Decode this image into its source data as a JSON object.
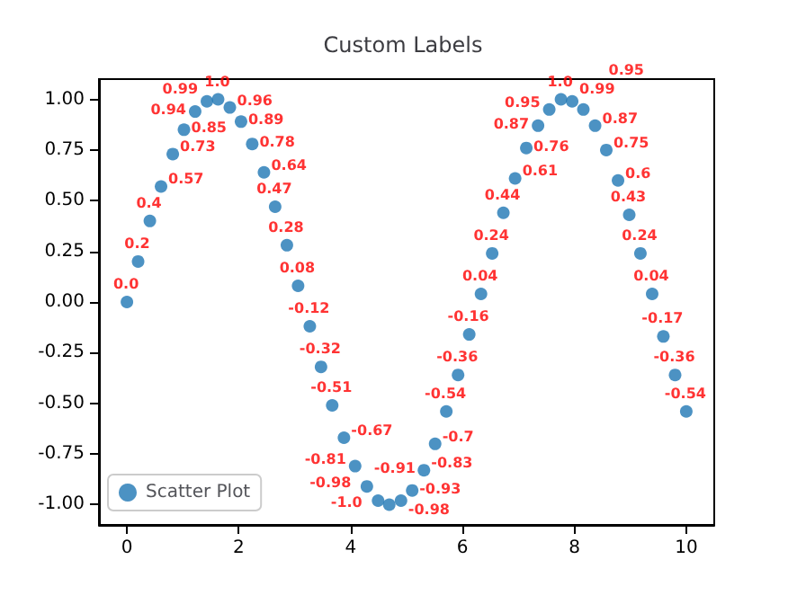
{
  "chart_data": {
    "type": "scatter",
    "title": "Custom Labels",
    "x": [
      0,
      0.2,
      0.41,
      0.61,
      0.82,
      1.02,
      1.22,
      1.43,
      1.63,
      1.84,
      2.04,
      2.24,
      2.45,
      2.65,
      2.86,
      3.06,
      3.27,
      3.47,
      3.67,
      3.88,
      4.08,
      4.29,
      4.49,
      4.69,
      4.9,
      5.1,
      5.31,
      5.51,
      5.71,
      5.92,
      6.12,
      6.33,
      6.53,
      6.73,
      6.94,
      7.14,
      7.35,
      7.55,
      7.76,
      7.96,
      8.16,
      8.37,
      8.57,
      8.78,
      8.98,
      9.18,
      9.39,
      9.59,
      9.8,
      10
    ],
    "series": [
      {
        "name": "Scatter Plot",
        "color": "#1f77b4",
        "values": [
          0.0,
          0.2,
          0.4,
          0.57,
          0.73,
          0.85,
          0.94,
          0.99,
          1.0,
          0.96,
          0.89,
          0.78,
          0.64,
          0.47,
          0.28,
          0.08,
          -0.12,
          -0.32,
          -0.51,
          -0.67,
          -0.81,
          -0.91,
          -0.98,
          -1.0,
          -0.98,
          -0.93,
          -0.83,
          -0.7,
          -0.54,
          -0.36,
          -0.16,
          0.04,
          0.24,
          0.44,
          0.61,
          0.76,
          0.87,
          0.95,
          1.0,
          0.99,
          0.95,
          0.87,
          0.75,
          0.6,
          0.43,
          0.24,
          0.04,
          -0.17,
          -0.36,
          -0.54
        ],
        "value_labels": [
          "0.0",
          "0.2",
          "0.4",
          "0.57",
          "0.73",
          "0.85",
          "0.94",
          "0.99",
          "1.0",
          "0.96",
          "0.89",
          "0.78",
          "0.64",
          "0.47",
          "0.28",
          "0.08",
          "-0.12",
          "-0.32",
          "-0.51",
          "-0.67",
          "-0.81",
          "-0.91",
          "-0.98",
          "-1.0",
          "-0.98",
          "-0.93",
          "-0.83",
          "-0.7",
          "-0.54",
          "-0.36",
          "-0.16",
          "0.04",
          "0.24",
          "0.44",
          "0.61",
          "0.76",
          "0.87",
          "0.95",
          "1.0",
          "0.99",
          "0.95",
          "0.87",
          "0.75",
          "0.6",
          "0.43",
          "0.24",
          "0.04",
          "-0.17",
          "-0.36",
          "-0.54"
        ]
      }
    ],
    "xlim": [
      -0.5,
      10.5
    ],
    "xticks": [
      0,
      2,
      4,
      6,
      8,
      10
    ],
    "ylim": [
      -1.1,
      1.1
    ],
    "yticks": [
      {
        "value": -1,
        "label": "-1.00"
      },
      {
        "value": -0.75,
        "label": "-0.75"
      },
      {
        "value": -0.5,
        "label": "-0.50"
      },
      {
        "value": -0.25,
        "label": "-0.25"
      },
      {
        "value": 0,
        "label": "0.00"
      },
      {
        "value": 0.25,
        "label": "0.25"
      },
      {
        "value": 0.5,
        "label": "0.50"
      },
      {
        "value": 0.75,
        "label": "0.75"
      },
      {
        "value": 1,
        "label": "1.00"
      }
    ],
    "legend": "bottom left",
    "grid": false,
    "marker": "circle"
  }
}
